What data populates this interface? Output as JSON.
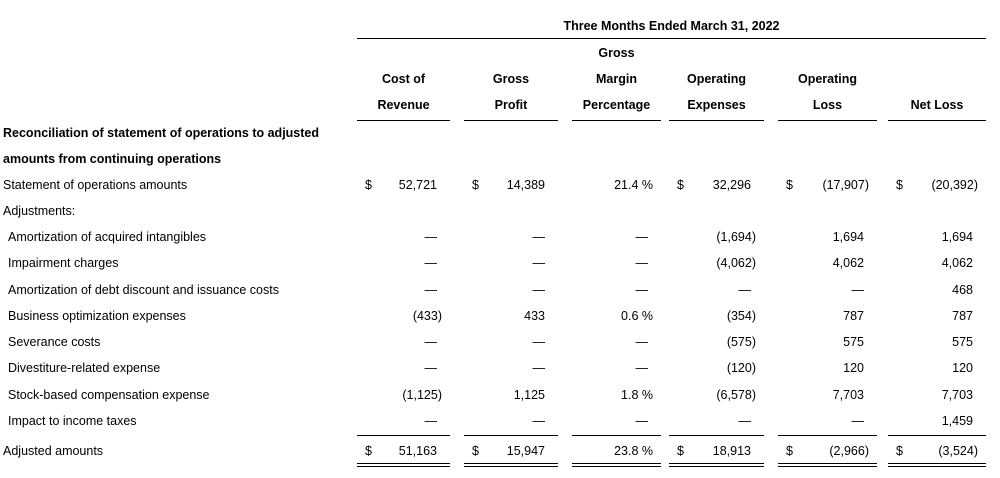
{
  "period_header": "Three Months Ended March 31, 2022",
  "columns": [
    {
      "lines": [
        "",
        "Cost of",
        "Revenue"
      ]
    },
    {
      "lines": [
        "",
        "Gross",
        "Profit"
      ]
    },
    {
      "lines": [
        "Gross",
        "Margin",
        "Percentage"
      ]
    },
    {
      "lines": [
        "",
        "Operating",
        "Expenses"
      ]
    },
    {
      "lines": [
        "",
        "Operating",
        "Loss"
      ]
    },
    {
      "lines": [
        "",
        "",
        "Net Loss"
      ]
    }
  ],
  "section_title_line1": "Reconciliation of statement of operations to adjusted",
  "section_title_line2": "amounts from continuing operations",
  "rows": [
    {
      "label": "Statement of operations amounts",
      "cells": [
        {
          "sym": "$",
          "val": "52,721"
        },
        {
          "sym": "$",
          "val": "14,389"
        },
        {
          "sym": "",
          "val": "21.4 %"
        },
        {
          "sym": "$",
          "val": "32,296"
        },
        {
          "sym": "$",
          "val": "(17,907)"
        },
        {
          "sym": "$",
          "val": "(20,392)"
        }
      ]
    },
    {
      "label": "Adjustments:",
      "cells": []
    },
    {
      "label": "Amortization of acquired intangibles",
      "cells": [
        {
          "sym": "",
          "val": "—"
        },
        {
          "sym": "",
          "val": "—"
        },
        {
          "sym": "",
          "val": "—"
        },
        {
          "sym": "",
          "val": "(1,694)"
        },
        {
          "sym": "",
          "val": "1,694"
        },
        {
          "sym": "",
          "val": "1,694"
        }
      ]
    },
    {
      "label": "Impairment charges",
      "cells": [
        {
          "sym": "",
          "val": "—"
        },
        {
          "sym": "",
          "val": "—"
        },
        {
          "sym": "",
          "val": "—"
        },
        {
          "sym": "",
          "val": "(4,062)"
        },
        {
          "sym": "",
          "val": "4,062"
        },
        {
          "sym": "",
          "val": "4,062"
        }
      ]
    },
    {
      "label": "Amortization of debt discount and issuance costs",
      "cells": [
        {
          "sym": "",
          "val": "—"
        },
        {
          "sym": "",
          "val": "—"
        },
        {
          "sym": "",
          "val": "—"
        },
        {
          "sym": "",
          "val": "—"
        },
        {
          "sym": "",
          "val": "—"
        },
        {
          "sym": "",
          "val": "468"
        }
      ]
    },
    {
      "label": "Business optimization expenses",
      "cells": [
        {
          "sym": "",
          "val": "(433)"
        },
        {
          "sym": "",
          "val": "433"
        },
        {
          "sym": "",
          "val": "0.6 %"
        },
        {
          "sym": "",
          "val": "(354)"
        },
        {
          "sym": "",
          "val": "787"
        },
        {
          "sym": "",
          "val": "787"
        }
      ]
    },
    {
      "label": "Severance costs",
      "cells": [
        {
          "sym": "",
          "val": "—"
        },
        {
          "sym": "",
          "val": "—"
        },
        {
          "sym": "",
          "val": "—"
        },
        {
          "sym": "",
          "val": "(575)"
        },
        {
          "sym": "",
          "val": "575"
        },
        {
          "sym": "",
          "val": "575"
        }
      ]
    },
    {
      "label": "Divestiture-related expense",
      "cells": [
        {
          "sym": "",
          "val": "—"
        },
        {
          "sym": "",
          "val": "—"
        },
        {
          "sym": "",
          "val": "—"
        },
        {
          "sym": "",
          "val": "(120)"
        },
        {
          "sym": "",
          "val": "120"
        },
        {
          "sym": "",
          "val": "120"
        }
      ]
    },
    {
      "label": "Stock-based compensation expense",
      "cells": [
        {
          "sym": "",
          "val": "(1,125)"
        },
        {
          "sym": "",
          "val": "1,125"
        },
        {
          "sym": "",
          "val": "1.8 %"
        },
        {
          "sym": "",
          "val": "(6,578)"
        },
        {
          "sym": "",
          "val": "7,703"
        },
        {
          "sym": "",
          "val": "7,703"
        }
      ]
    },
    {
      "label": "Impact to income taxes",
      "cells": [
        {
          "sym": "",
          "val": "—"
        },
        {
          "sym": "",
          "val": "—"
        },
        {
          "sym": "",
          "val": "—"
        },
        {
          "sym": "",
          "val": "—"
        },
        {
          "sym": "",
          "val": "—"
        },
        {
          "sym": "",
          "val": "1,459"
        }
      ]
    },
    {
      "label": "Adjusted amounts",
      "cells": [
        {
          "sym": "$",
          "val": "51,163"
        },
        {
          "sym": "$",
          "val": "15,947"
        },
        {
          "sym": "",
          "val": "23.8 %"
        },
        {
          "sym": "$",
          "val": "18,913"
        },
        {
          "sym": "$",
          "val": "(2,966)"
        },
        {
          "sym": "$",
          "val": "(3,524)"
        }
      ]
    }
  ]
}
